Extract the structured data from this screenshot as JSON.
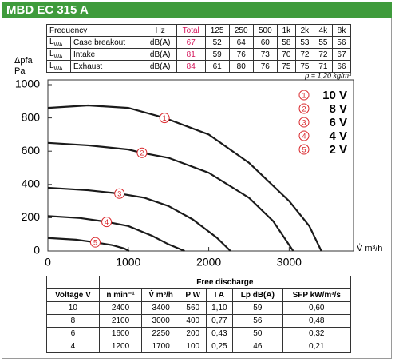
{
  "header": {
    "title": "MBD EC 315 A"
  },
  "sound_table": {
    "columns": [
      "Frequency",
      "Hz",
      "Total",
      "125",
      "250",
      "500",
      "1k",
      "2k",
      "4k",
      "8k"
    ],
    "rows": [
      {
        "symbol": "L",
        "sub": "WA",
        "label": "Case breakout",
        "unit": "dB(A)",
        "values": [
          67,
          52,
          64,
          60,
          58,
          53,
          55,
          56
        ]
      },
      {
        "symbol": "L",
        "sub": "WA",
        "label": "Intake",
        "unit": "dB(A)",
        "values": [
          81,
          59,
          76,
          73,
          70,
          72,
          72,
          67
        ]
      },
      {
        "symbol": "L",
        "sub": "WA",
        "label": "Exhaust",
        "unit": "dB(A)",
        "values": [
          84,
          61,
          80,
          76,
          75,
          75,
          71,
          66
        ]
      }
    ]
  },
  "chart_data": {
    "type": "line",
    "y_label": [
      "Δpfa",
      "Pa"
    ],
    "x_label": "V̇ m³/h",
    "annotation": "ρ = 1,20 kg/m³",
    "xlim": [
      0,
      3800
    ],
    "ylim": [
      0,
      1000
    ],
    "xticks": [
      0,
      1000,
      2000,
      3000
    ],
    "yticks": [
      0,
      200,
      400,
      600,
      800,
      1000
    ],
    "legend": "top-right",
    "marker_color": "#d9262b",
    "series": [
      {
        "name": "10 V",
        "marker": "1",
        "color": "#1a1a1a",
        "x": [
          0,
          500,
          1000,
          1450,
          2000,
          2500,
          3000,
          3250,
          3400
        ],
        "values": [
          860,
          875,
          860,
          800,
          700,
          530,
          300,
          150,
          0
        ]
      },
      {
        "name": "8 V",
        "marker": "2",
        "color": "#1a1a1a",
        "x": [
          0,
          500,
          1000,
          1170,
          1500,
          2000,
          2500,
          2800,
          3050
        ],
        "values": [
          650,
          635,
          610,
          590,
          560,
          470,
          320,
          180,
          0
        ]
      },
      {
        "name": "6 V",
        "marker": "3",
        "color": "#1a1a1a",
        "x": [
          0,
          500,
          890,
          1200,
          1500,
          1800,
          2100,
          2270
        ],
        "values": [
          380,
          365,
          345,
          320,
          270,
          190,
          80,
          0
        ]
      },
      {
        "name": "4 V",
        "marker": "4",
        "color": "#1a1a1a",
        "x": [
          0,
          400,
          730,
          1000,
          1300,
          1500,
          1700
        ],
        "values": [
          210,
          198,
          175,
          150,
          90,
          40,
          0
        ]
      },
      {
        "name": "2 V",
        "marker": "5",
        "color": "#1a1a1a",
        "x": [
          0,
          350,
          590,
          800,
          950,
          1010
        ],
        "values": [
          78,
          68,
          52,
          35,
          15,
          0
        ]
      }
    ]
  },
  "performance_table": {
    "group_header": "Free discharge",
    "columns": [
      "Voltage V",
      "n min⁻¹",
      "V̇ m³/h",
      "P W",
      "I A",
      "Lp dB(A)",
      "SFP kW/m³/s"
    ],
    "rows": [
      [
        "10",
        "2400",
        "3400",
        "560",
        "1,10",
        "59",
        "0,60"
      ],
      [
        "8",
        "2100",
        "3000",
        "400",
        "0,77",
        "56",
        "0,48"
      ],
      [
        "6",
        "1600",
        "2250",
        "200",
        "0,43",
        "50",
        "0,32"
      ],
      [
        "4",
        "1200",
        "1700",
        "100",
        "0,25",
        "46",
        "0,21"
      ]
    ]
  }
}
